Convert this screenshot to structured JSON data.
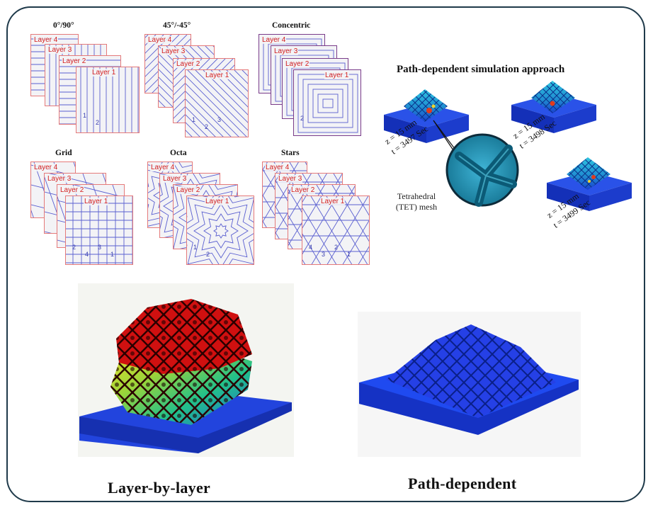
{
  "patterns": [
    {
      "title": "0°/90°",
      "layers": [
        "Layer 4",
        "Layer 3",
        "Layer 2",
        "Layer 1"
      ],
      "marks": [
        "1",
        "2"
      ]
    },
    {
      "title": "45°/-45°",
      "layers": [
        "Layer 4",
        "Layer 3",
        "Layer 2",
        "Layer 1"
      ],
      "marks": [
        "1",
        "2",
        "3"
      ]
    },
    {
      "title": "Concentric",
      "layers": [
        "Layer 4",
        "Layer 3",
        "Layer 2",
        "Layer 1"
      ],
      "marks": [
        "2"
      ]
    },
    {
      "title": "Grid",
      "layers": [
        "Layer 4",
        "Layer 3",
        "Layer 2",
        "Layer 1"
      ],
      "marks": [
        "2",
        "4",
        "3",
        "1"
      ]
    },
    {
      "title": "Octa",
      "layers": [
        "Layer 4",
        "Layer 3",
        "Layer 2",
        "Layer 1"
      ],
      "marks": [
        "1",
        "2"
      ]
    },
    {
      "title": "Stars",
      "layers": [
        "Layer 4",
        "Layer 3",
        "Layer 2",
        "Layer 1"
      ],
      "marks": [
        "4",
        "3",
        "2",
        "1"
      ]
    }
  ],
  "simulation": {
    "title": "Path-dependent simulation approach",
    "snapshots": [
      {
        "z": "z = 15 mm",
        "t": "t = 3497 Sec"
      },
      {
        "z": "z = 15 mm",
        "t": "t = 3498 Sec"
      },
      {
        "z": "z = 15 mm",
        "t": "t = 3499 Sec"
      }
    ],
    "mesh_label_1": "Tetrahedral",
    "mesh_label_2": "(TET) mesh"
  },
  "captions": {
    "left": "Layer-by-layer",
    "right": "Path-dependent"
  },
  "colors": {
    "frame": "#1f3a4a",
    "layer_border": "#e57a7a",
    "hatch": "#5a5fd0",
    "layer_label": "#d42020",
    "substrate": "#1b3fd6",
    "lattice_red": "#d01010"
  }
}
